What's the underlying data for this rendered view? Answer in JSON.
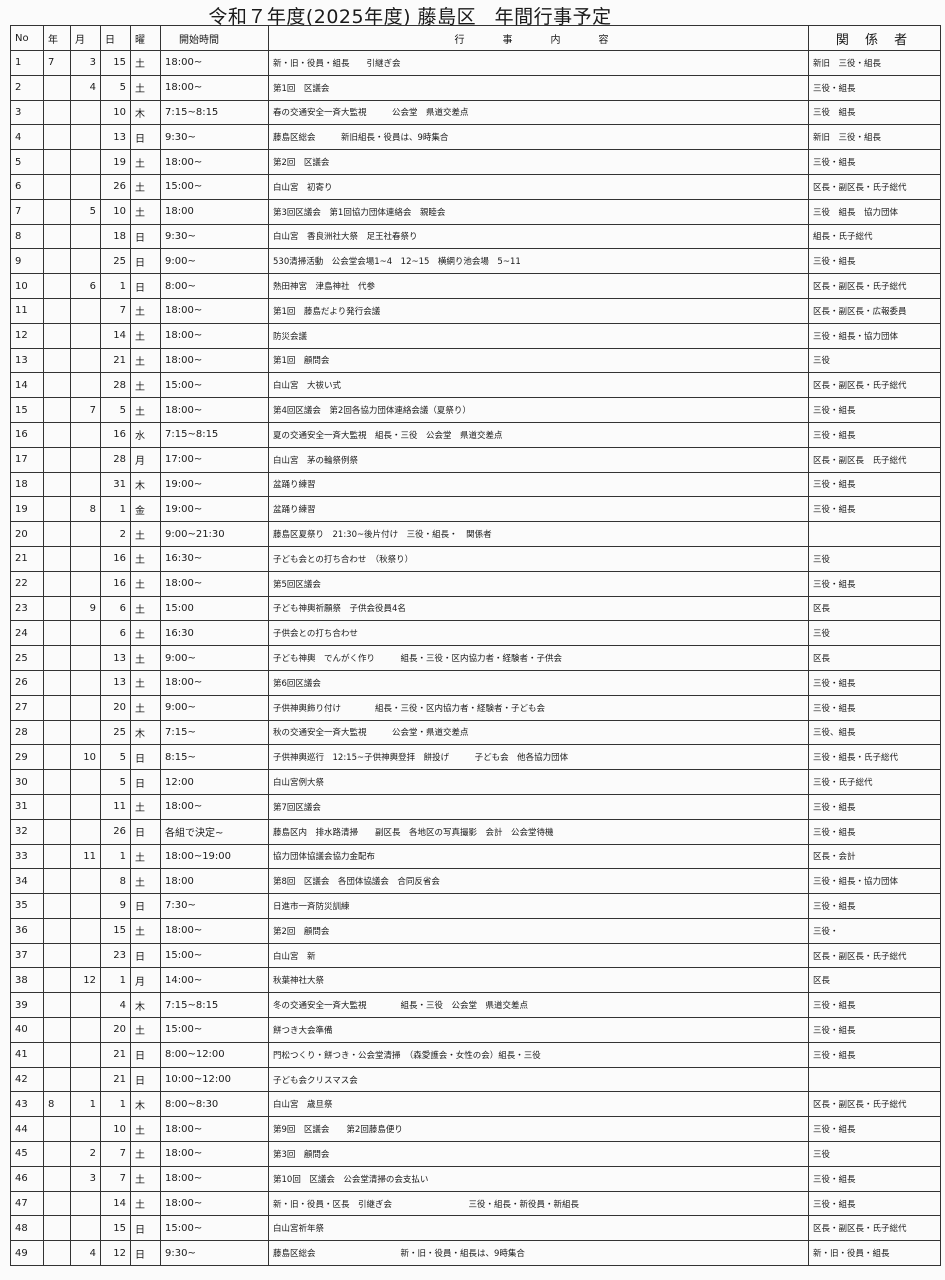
{
  "title": {
    "main": "令和７年度(2025年度) 藤島区",
    "sub": "年間行事予定"
  },
  "headers": [
    "No",
    "年",
    "月",
    "日",
    "曜",
    "開始時間",
    "行　事　内　容",
    "関 係 者"
  ],
  "rows": [
    [
      "1",
      "7",
      "3",
      "15",
      "土",
      "18:00~",
      "新・旧・役員・組長　　引継ぎ会",
      "新旧　三役・組長"
    ],
    [
      "2",
      "",
      "4",
      "5",
      "土",
      "18:00~",
      "第1回　区議会",
      "三役・組長"
    ],
    [
      "3",
      "",
      "",
      "10",
      "木",
      "7:15~8:15",
      "春の交通安全一斉大監視　　　公会堂　県道交差点",
      "三役　組長"
    ],
    [
      "4",
      "",
      "",
      "13",
      "日",
      "9:30~",
      "藤島区総会　　　新旧組長・役員は、9時集合",
      "新旧　三役・組長"
    ],
    [
      "5",
      "",
      "",
      "19",
      "土",
      "18:00~",
      "第2回　区議会",
      "三役・組長"
    ],
    [
      "6",
      "",
      "",
      "26",
      "土",
      "15:00~",
      "白山宮　初寄り",
      "区長・副区長・氏子総代"
    ],
    [
      "7",
      "",
      "5",
      "10",
      "土",
      "18:00",
      "第3回区議会　第1回協力団体連絡会　親睦会",
      "三役　組長　協力団体"
    ],
    [
      "8",
      "",
      "",
      "18",
      "日",
      "9:30~",
      "白山宮　香良洲社大祭　足王社春祭り",
      "組長・氏子総代"
    ],
    [
      "9",
      "",
      "",
      "25",
      "日",
      "9:00~",
      "530清掃活動　公会堂会場1~4　12~15　横網り池会場　5~11",
      "三役・組長"
    ],
    [
      "10",
      "",
      "6",
      "1",
      "日",
      "8:00~",
      "熱田神宮　津島神社　代参",
      "区長・副区長・氏子総代"
    ],
    [
      "11",
      "",
      "",
      "7",
      "土",
      "18:00~",
      "第1回　藤島だより発行会議",
      "区長・副区長・広報委員"
    ],
    [
      "12",
      "",
      "",
      "14",
      "土",
      "18:00~",
      "防災会議",
      "三役・組長・協力団体"
    ],
    [
      "13",
      "",
      "",
      "21",
      "土",
      "18:00~",
      "第1回　顧問会",
      "三役"
    ],
    [
      "14",
      "",
      "",
      "28",
      "土",
      "15:00~",
      "白山宮　大祓い式",
      "区長・副区長・氏子総代"
    ],
    [
      "15",
      "",
      "7",
      "5",
      "土",
      "18:00~",
      "第4回区議会　第2回各協力団体連絡会議（夏祭り）",
      "三役・組長"
    ],
    [
      "16",
      "",
      "",
      "16",
      "水",
      "7:15~8:15",
      "夏の交通安全一斉大監視　組長・三役　公会堂　県道交差点",
      "三役・組長"
    ],
    [
      "17",
      "",
      "",
      "28",
      "月",
      "17:00~",
      "白山宮　茅の輪祭例祭",
      "区長・副区長　氏子総代"
    ],
    [
      "18",
      "",
      "",
      "31",
      "木",
      "19:00~",
      "盆踊り練習",
      "三役・組長"
    ],
    [
      "19",
      "",
      "8",
      "1",
      "金",
      "19:00~",
      "盆踊り練習",
      "三役・組長"
    ],
    [
      "20",
      "",
      "",
      "2",
      "土",
      "9:00~21:30",
      "藤島区夏祭り　21:30~後片付け　三役・組長・　関係者",
      ""
    ],
    [
      "21",
      "",
      "",
      "16",
      "土",
      "16:30~",
      "子ども会との打ち合わせ　（秋祭り）",
      "三役"
    ],
    [
      "22",
      "",
      "",
      "16",
      "土",
      "18:00~",
      "第5回区議会",
      "三役・組長"
    ],
    [
      "23",
      "",
      "9",
      "6",
      "土",
      "15:00",
      "子ども神輿祈願祭　子供会役員4名",
      "区長"
    ],
    [
      "24",
      "",
      "",
      "6",
      "土",
      "16:30",
      "子供会との打ち合わせ",
      "三役"
    ],
    [
      "25",
      "",
      "",
      "13",
      "土",
      "9:00~",
      "子ども神輿　でんがく作り　　　組長・三役・区内協力者・経験者・子供会",
      "区長"
    ],
    [
      "26",
      "",
      "",
      "13",
      "土",
      "18:00~",
      "第6回区議会",
      "三役・組長"
    ],
    [
      "27",
      "",
      "",
      "20",
      "土",
      "9:00~",
      "子供神輿飾り付け　　　　組長・三役・区内協力者・経験者・子ども会",
      "三役・組長"
    ],
    [
      "28",
      "",
      "",
      "25",
      "木",
      "7:15~",
      "秋の交通安全一斉大監視　　　公会堂・県道交差点",
      "三役、組長"
    ],
    [
      "29",
      "",
      "10",
      "5",
      "日",
      "8:15~",
      "子供神輿巡行　12:15~子供神輿登拝　餅投げ　　　子ども会　他各協力団体",
      "三役・組長・氏子総代"
    ],
    [
      "30",
      "",
      "",
      "5",
      "日",
      "12:00",
      "白山宮例大祭",
      "三役・氏子総代"
    ],
    [
      "31",
      "",
      "",
      "11",
      "土",
      "18:00~",
      "第7回区議会",
      "三役・組長"
    ],
    [
      "32",
      "",
      "",
      "26",
      "日",
      "各組で決定~",
      "藤島区内　排水路清掃　　副区長　各地区の写真撮影　会計　公会堂待機",
      "三役・組長"
    ],
    [
      "33",
      "",
      "11",
      "1",
      "土",
      "18:00~19:00",
      "協力団体協議会協力金配布",
      "区長・会計"
    ],
    [
      "34",
      "",
      "",
      "8",
      "土",
      "18:00",
      "第8回　区議会　各団体協議会　合同反省会",
      "三役・組長・協力団体"
    ],
    [
      "35",
      "",
      "",
      "9",
      "日",
      "7:30~",
      "日進市一斉防災訓練",
      "三役・組長"
    ],
    [
      "36",
      "",
      "",
      "15",
      "土",
      "18:00~",
      "第2回　顧問会",
      "三役・"
    ],
    [
      "37",
      "",
      "",
      "23",
      "日",
      "15:00~",
      "白山宮　新",
      "区長・副区長・氏子総代"
    ],
    [
      "38",
      "",
      "12",
      "1",
      "月",
      "14:00~",
      "秋葉神社大祭",
      "区長"
    ],
    [
      "39",
      "",
      "",
      "4",
      "木",
      "7:15~8:15",
      "冬の交通安全一斉大監視　　　　組長・三役　公会堂　県道交差点",
      "三役・組長"
    ],
    [
      "40",
      "",
      "",
      "20",
      "土",
      "15:00~",
      "餅つき大会準備",
      "三役・組長"
    ],
    [
      "41",
      "",
      "",
      "21",
      "日",
      "8:00~12:00",
      "門松つくり・餅つき・公会堂清掃　（森愛護会・女性の会）組長・三役",
      "三役・組長"
    ],
    [
      "42",
      "",
      "",
      "21",
      "日",
      "10:00~12:00",
      "子ども会クリスマス会",
      ""
    ],
    [
      "43",
      "8",
      "1",
      "1",
      "木",
      "8:00~8:30",
      "白山宮　歳旦祭",
      "区長・副区長・氏子総代"
    ],
    [
      "44",
      "",
      "",
      "10",
      "土",
      "18:00~",
      "第9回　区議会　　第2回藤島便り",
      "三役・組長"
    ],
    [
      "45",
      "",
      "2",
      "7",
      "土",
      "18:00~",
      "第3回　顧問会",
      "三役"
    ],
    [
      "46",
      "",
      "3",
      "7",
      "土",
      "18:00~",
      "第10回　区議会　公会堂清掃の会支払い",
      "三役・組長"
    ],
    [
      "47",
      "",
      "",
      "14",
      "土",
      "18:00~",
      "新・旧・役員・区長　引継ぎ会　　　　　　　　　三役・組長・新役員・新組長",
      "三役・組長"
    ],
    [
      "48",
      "",
      "",
      "15",
      "日",
      "15:00~",
      "白山宮祈年祭",
      "区長・副区長・氏子総代"
    ],
    [
      "49",
      "",
      "4",
      "12",
      "日",
      "9:30~",
      "藤島区総会　　　　　　　　　　新・旧・役員・組長は、9時集合",
      "新・旧・役員・組長"
    ]
  ]
}
